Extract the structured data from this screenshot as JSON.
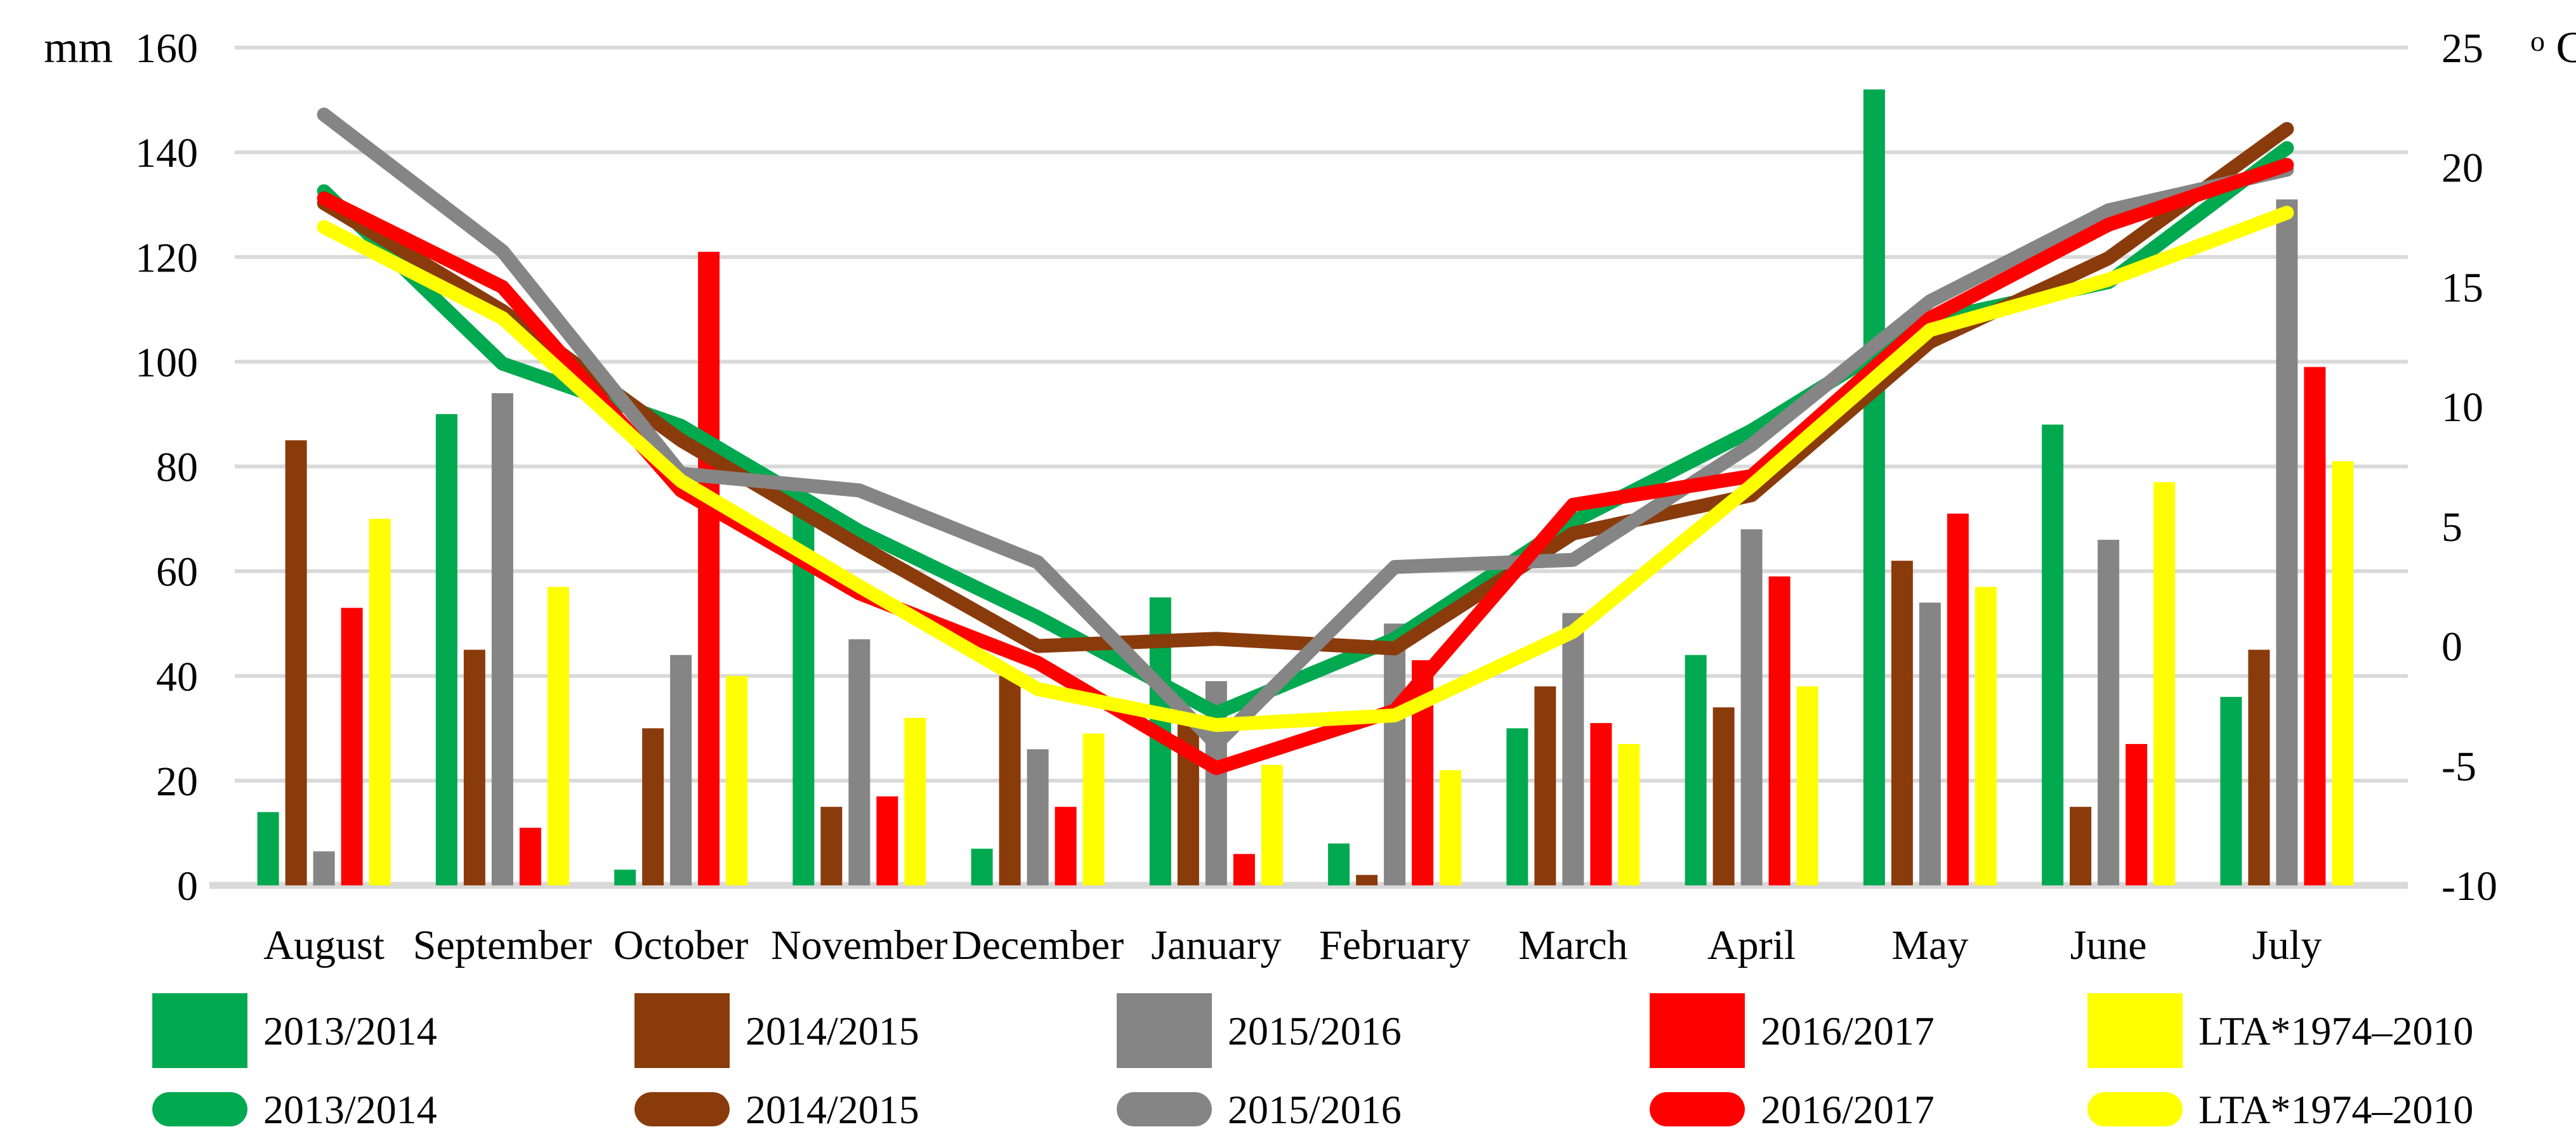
{
  "chart_data": {
    "type": "combo-bar-line",
    "months": [
      "August",
      "September",
      "October",
      "November",
      "December",
      "January",
      "February",
      "March",
      "April",
      "May",
      "June",
      "July"
    ],
    "left_axis": {
      "label": "mm",
      "min": 0,
      "max": 160,
      "step": 20,
      "ticks": [
        "160",
        "140",
        "120",
        "100",
        "80",
        "60",
        "40",
        "20",
        "0"
      ]
    },
    "right_axis": {
      "label_sup": "o",
      "label_base": "C",
      "min": -10,
      "max": 25,
      "step": 5,
      "ticks": [
        "25",
        "20",
        "15",
        "10",
        "5",
        "0",
        "-5",
        "-10"
      ]
    },
    "grid": "horizontal",
    "colors": {
      "green": "#00A94F",
      "brown": "#8A3B0C",
      "gray": "#858585",
      "red": "#FF0000",
      "yellow": "#FFFF00",
      "gridline": "#D9D9D9",
      "text": "#050505"
    },
    "precipitation_bars": {
      "unit": "mm",
      "series": [
        {
          "name": "2013/2014",
          "color": "#00A94F",
          "values": [
            14,
            90,
            3,
            72,
            7,
            55,
            8,
            30,
            44,
            152,
            88,
            36
          ]
        },
        {
          "name": "2014/2015",
          "color": "#8A3B0C",
          "values": [
            85,
            45,
            30,
            15,
            40,
            31,
            2,
            38,
            34,
            62,
            15,
            45
          ]
        },
        {
          "name": "2015/2016",
          "color": "#858585",
          "values": [
            6.5,
            94,
            44,
            47,
            26,
            39,
            50,
            52,
            68,
            54,
            66,
            131
          ]
        },
        {
          "name": "2016/2017",
          "color": "#FF0000",
          "values": [
            53,
            11,
            121,
            17,
            15,
            6,
            43,
            31,
            59,
            71,
            27,
            99
          ]
        },
        {
          "name": "LTA*1974–2010",
          "color": "#FFFF00",
          "values": [
            70,
            57,
            40,
            32,
            29,
            23,
            22,
            27,
            38,
            57,
            77,
            81
          ]
        }
      ]
    },
    "temperature_lines": {
      "unit": "°C",
      "series": [
        {
          "name": "2013/2014",
          "color": "#00A94F",
          "values": [
            19.0,
            11.8,
            9.2,
            4.8,
            1.2,
            -2.8,
            0.3,
            5.2,
            9.0,
            13.6,
            15.2,
            20.8
          ]
        },
        {
          "name": "2014/2015",
          "color": "#8A3B0C",
          "values": [
            18.5,
            14.0,
            8.6,
            4.2,
            0.0,
            0.3,
            -0.1,
            4.7,
            6.3,
            12.7,
            16.2,
            21.6
          ]
        },
        {
          "name": "2015/2016",
          "color": "#858585",
          "values": [
            22.2,
            16.5,
            7.2,
            6.5,
            3.5,
            -4.1,
            3.3,
            3.6,
            8.4,
            14.4,
            18.2,
            19.9
          ]
        },
        {
          "name": "2016/2017",
          "color": "#FF0000",
          "values": [
            18.7,
            15.0,
            6.5,
            2.2,
            -0.7,
            -5.1,
            -2.7,
            5.9,
            7.1,
            13.7,
            17.6,
            20.1
          ]
        },
        {
          "name": "LTA*1974–2010",
          "color": "#FFFF00",
          "values": [
            17.5,
            13.7,
            6.9,
            2.5,
            -1.8,
            -3.3,
            -2.9,
            0.6,
            6.7,
            13.2,
            15.3,
            18.1
          ]
        }
      ]
    },
    "legend": {
      "position": "bottom",
      "bar_row_labels": [
        "2013/2014",
        "2014/2015",
        "2015/2016",
        "2016/2017",
        "LTA*1974–2010"
      ],
      "line_row_labels": [
        "2013/2014",
        "2014/2015",
        "2015/2016",
        "2016/2017",
        "LTA*1974–2010"
      ]
    }
  }
}
